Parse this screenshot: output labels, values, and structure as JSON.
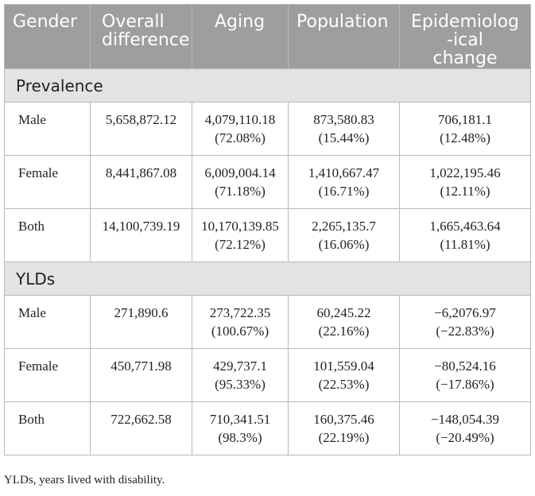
{
  "table": {
    "headers": {
      "gender": "Gender",
      "overall": [
        "Overall",
        "difference"
      ],
      "aging": "Aging",
      "population": "Population",
      "epidemiological": [
        "Epidemiolog",
        "-ical",
        "change"
      ]
    },
    "sections": [
      {
        "title": "Prevalence",
        "rows": [
          {
            "gender": "Male",
            "overall": "5,658,872.12",
            "aging": "4,079,110.18",
            "aging_pct": "(72.08%)",
            "population": "873,580.83",
            "population_pct": "(15.44%)",
            "epi": "706,181.1",
            "epi_pct": "(12.48%)"
          },
          {
            "gender": "Female",
            "overall": "8,441,867.08",
            "aging": "6,009,004.14",
            "aging_pct": "(71.18%)",
            "population": "1,410,667.47",
            "population_pct": "(16.71%)",
            "epi": "1,022,195.46",
            "epi_pct": "(12.11%)"
          },
          {
            "gender": "Both",
            "overall": "14,100,739.19",
            "aging": "10,170,139.85",
            "aging_pct": "(72.12%)",
            "population": "2,265,135.7",
            "population_pct": "(16.06%)",
            "epi": "1,665,463.64",
            "epi_pct": "(11.81%)"
          }
        ]
      },
      {
        "title": "YLDs",
        "rows": [
          {
            "gender": "Male",
            "overall": "271,890.6",
            "aging": "273,722.35",
            "aging_pct": "(100.67%)",
            "population": "60,245.22",
            "population_pct": "(22.16%)",
            "epi": "−6,2076.97",
            "epi_pct": "(−22.83%)"
          },
          {
            "gender": "Female",
            "overall": "450,771.98",
            "aging": "429,737.1",
            "aging_pct": "(95.33%)",
            "population": "101,559.04",
            "population_pct": "(22.53%)",
            "epi": "−80,524.16",
            "epi_pct": "(−17.86%)"
          },
          {
            "gender": "Both",
            "overall": "722,662.58",
            "aging": "710,341.51",
            "aging_pct": "(98.3%)",
            "population": "160,375.46",
            "population_pct": "(22.19%)",
            "epi": "−148,054.39",
            "epi_pct": "(−20.49%)"
          }
        ]
      }
    ]
  },
  "footnote": "YLDs, years lived with disability."
}
